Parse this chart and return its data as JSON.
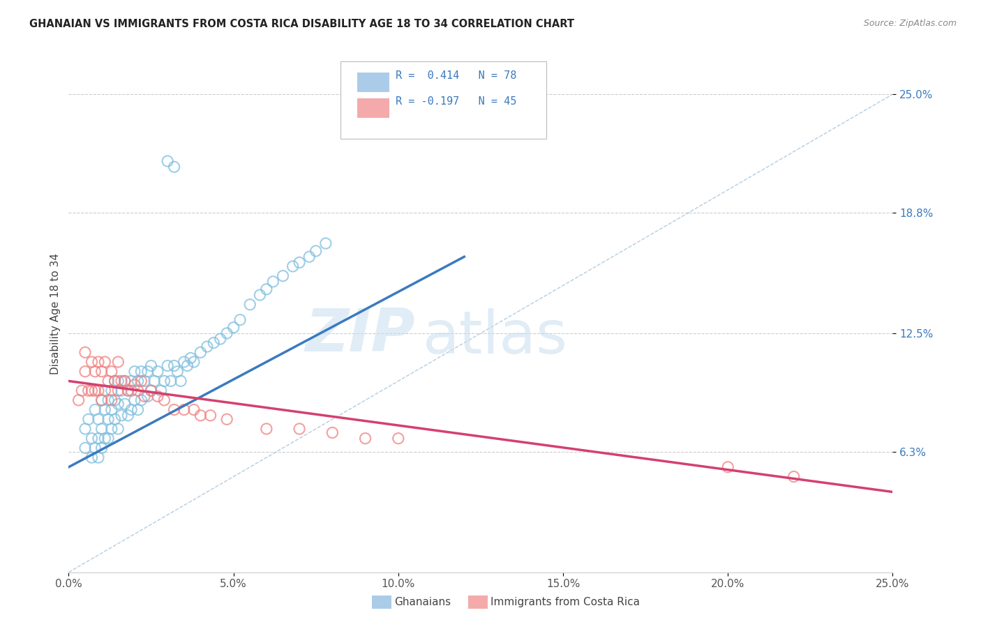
{
  "title": "GHANAIAN VS IMMIGRANTS FROM COSTA RICA DISABILITY AGE 18 TO 34 CORRELATION CHART",
  "source": "Source: ZipAtlas.com",
  "ylabel": "Disability Age 18 to 34",
  "ytick_labels": [
    "6.3%",
    "12.5%",
    "18.8%",
    "25.0%"
  ],
  "ytick_values": [
    0.063,
    0.125,
    0.188,
    0.25
  ],
  "xmin": 0.0,
  "xmax": 0.25,
  "ymin": 0.0,
  "ymax": 0.27,
  "blue_color": "#7fbfdf",
  "pink_color": "#f08080",
  "blue_line_color": "#3a7abf",
  "pink_line_color": "#d44070",
  "dashed_line_color": "#a0c0d8",
  "watermark_zip": "ZIP",
  "watermark_atlas": "atlas",
  "legend_label1": "Ghanaians",
  "legend_label2": "Immigrants from Costa Rica",
  "blue_scatter_x": [
    0.005,
    0.005,
    0.006,
    0.007,
    0.007,
    0.008,
    0.008,
    0.009,
    0.009,
    0.009,
    0.01,
    0.01,
    0.01,
    0.011,
    0.011,
    0.012,
    0.012,
    0.012,
    0.013,
    0.013,
    0.013,
    0.014,
    0.014,
    0.014,
    0.015,
    0.015,
    0.015,
    0.016,
    0.016,
    0.017,
    0.017,
    0.018,
    0.018,
    0.019,
    0.019,
    0.02,
    0.02,
    0.021,
    0.021,
    0.022,
    0.022,
    0.023,
    0.024,
    0.024,
    0.025,
    0.025,
    0.026,
    0.027,
    0.028,
    0.029,
    0.03,
    0.031,
    0.032,
    0.033,
    0.034,
    0.035,
    0.036,
    0.037,
    0.038,
    0.04,
    0.042,
    0.044,
    0.046,
    0.048,
    0.05,
    0.052,
    0.055,
    0.058,
    0.06,
    0.062,
    0.065,
    0.068,
    0.07,
    0.073,
    0.075,
    0.078,
    0.03,
    0.032
  ],
  "blue_scatter_y": [
    0.075,
    0.065,
    0.08,
    0.07,
    0.06,
    0.085,
    0.065,
    0.08,
    0.07,
    0.06,
    0.09,
    0.075,
    0.065,
    0.085,
    0.07,
    0.09,
    0.08,
    0.07,
    0.095,
    0.085,
    0.075,
    0.1,
    0.09,
    0.08,
    0.1,
    0.088,
    0.075,
    0.095,
    0.082,
    0.1,
    0.088,
    0.095,
    0.082,
    0.1,
    0.085,
    0.105,
    0.09,
    0.1,
    0.085,
    0.105,
    0.09,
    0.1,
    0.105,
    0.092,
    0.108,
    0.095,
    0.1,
    0.105,
    0.095,
    0.1,
    0.108,
    0.1,
    0.108,
    0.105,
    0.1,
    0.11,
    0.108,
    0.112,
    0.11,
    0.115,
    0.118,
    0.12,
    0.122,
    0.125,
    0.128,
    0.132,
    0.14,
    0.145,
    0.148,
    0.152,
    0.155,
    0.16,
    0.162,
    0.165,
    0.168,
    0.172,
    0.215,
    0.212
  ],
  "pink_scatter_x": [
    0.003,
    0.004,
    0.005,
    0.005,
    0.006,
    0.007,
    0.007,
    0.008,
    0.008,
    0.009,
    0.009,
    0.01,
    0.01,
    0.011,
    0.011,
    0.012,
    0.013,
    0.013,
    0.014,
    0.015,
    0.015,
    0.016,
    0.017,
    0.018,
    0.019,
    0.02,
    0.021,
    0.022,
    0.023,
    0.025,
    0.027,
    0.029,
    0.032,
    0.035,
    0.038,
    0.04,
    0.043,
    0.048,
    0.06,
    0.07,
    0.08,
    0.09,
    0.1,
    0.2,
    0.22
  ],
  "pink_scatter_y": [
    0.09,
    0.095,
    0.115,
    0.105,
    0.095,
    0.11,
    0.095,
    0.105,
    0.095,
    0.11,
    0.095,
    0.105,
    0.09,
    0.11,
    0.095,
    0.1,
    0.105,
    0.09,
    0.1,
    0.11,
    0.095,
    0.1,
    0.1,
    0.095,
    0.095,
    0.098,
    0.095,
    0.1,
    0.092,
    0.095,
    0.092,
    0.09,
    0.085,
    0.085,
    0.085,
    0.082,
    0.082,
    0.08,
    0.075,
    0.075,
    0.073,
    0.07,
    0.07,
    0.055,
    0.05
  ],
  "blue_trend_x": [
    0.0,
    0.12
  ],
  "blue_trend_y": [
    0.055,
    0.165
  ],
  "pink_trend_x": [
    0.0,
    0.25
  ],
  "pink_trend_y": [
    0.1,
    0.042
  ],
  "diag_line_x": [
    0.0,
    0.25
  ],
  "diag_line_y": [
    0.0,
    0.25
  ]
}
